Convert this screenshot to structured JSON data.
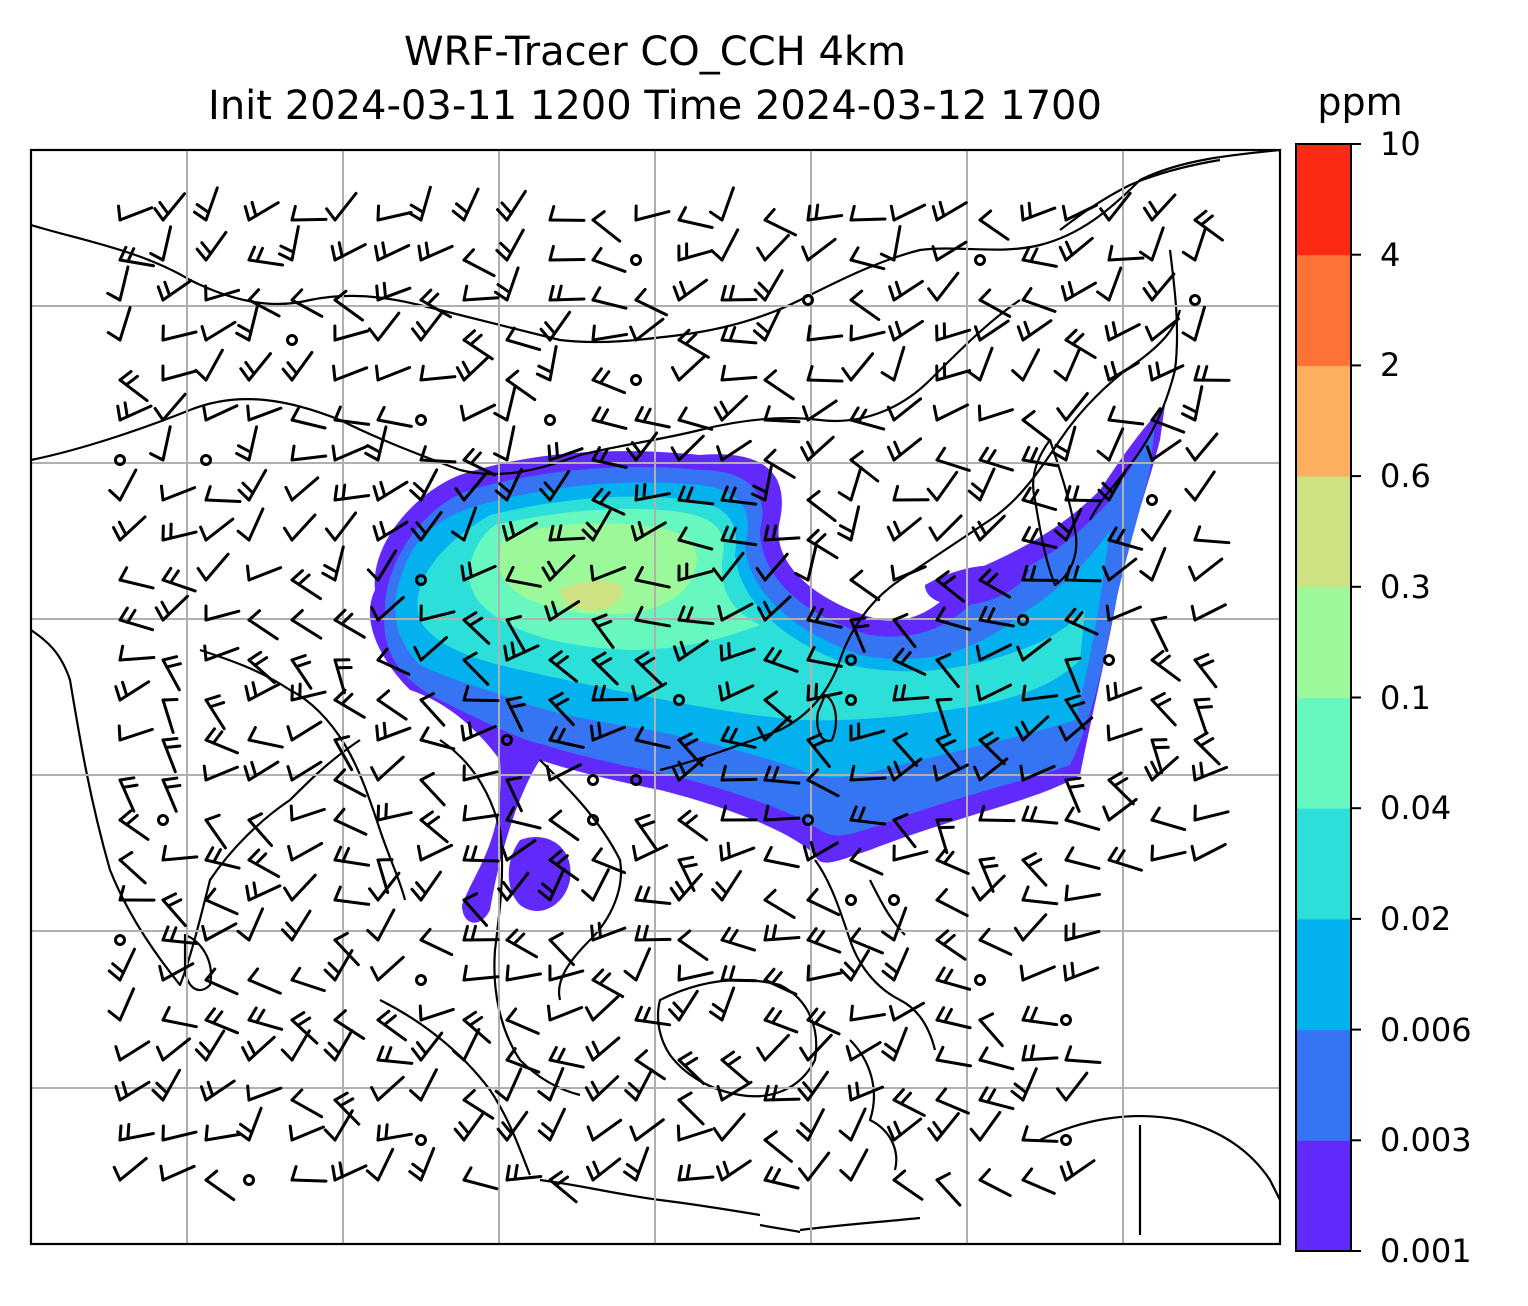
{
  "title": {
    "line1": "WRF-Tracer CO_CCH 4km",
    "line2": "Init 2024-03-11 1200 Time 2024-03-12 1700"
  },
  "colorbar": {
    "unit": "ppm",
    "levels": [
      "0.001",
      "0.003",
      "0.006",
      "0.02",
      "0.04",
      "0.1",
      "0.3",
      "0.6",
      "2",
      "4",
      "10"
    ],
    "colors": [
      "#6229fb",
      "#3575f4",
      "#03b1ee",
      "#2cdfd8",
      "#66f8be",
      "#9bf99a",
      "#cfe283",
      "#fdaf60",
      "#fe7137",
      "#fc2a15"
    ]
  },
  "map": {
    "gridlines": true,
    "field": "CO_CCH tracer concentration",
    "overlay": "wind-barbs",
    "coastline_color": "#000000"
  }
}
